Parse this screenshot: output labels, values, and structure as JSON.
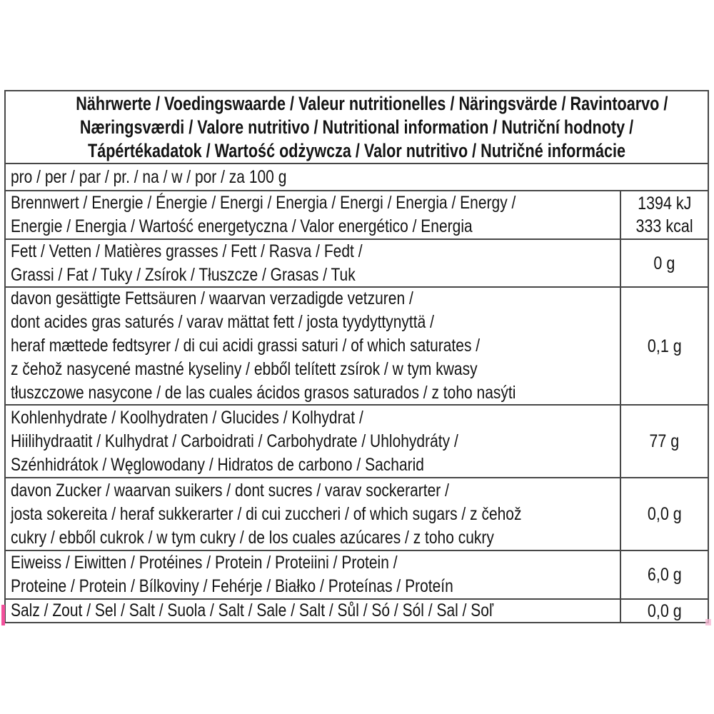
{
  "title": "Multilingual nutrition information label",
  "colors": {
    "background": "#ffffff",
    "border": "#474747",
    "text": "#141414",
    "artifact_pink": "#f2509c",
    "artifact_pink_faint": "#f6b9d3"
  },
  "table": {
    "header": {
      "lines": [
        "Nährwerte / Voedingswaarde / Valeur nutritionelles / Näringsvärde / Ravintoarvo /",
        "Næringsværdi / Valore nutritivo / Nutritional information / Nutriční hodnoty /",
        "Tápértékadatok / Wartość odżywcza / Valor nutritivo / Nutričné informácie"
      ]
    },
    "serving": {
      "text": "pro / per / par / pr. / na / w / por / za 100 g"
    },
    "rows": [
      {
        "id": "energy",
        "lines": [
          "Brennwert / Energie / Énergie / Energi / Energia / Energi / Energia / Energy /",
          "Energie / Energia / Wartość energetyczna / Valor energético / Energia"
        ],
        "values": [
          "1394 kJ",
          "333 kcal"
        ]
      },
      {
        "id": "fat",
        "lines": [
          "Fett / Vetten / Matières grasses / Fett / Rasva / Fedt /",
          "Grassi / Fat / Tuky / Zsírok / Tłuszcze / Grasas / Tuk"
        ],
        "values": [
          "0 g"
        ]
      },
      {
        "id": "saturates",
        "lines": [
          "davon gesättigte Fettsäuren / waarvan verzadigde vetzuren /",
          "dont acides gras saturés / varav mättat fett / josta tyydyttynyttä /",
          "heraf mættede fedtsyrer / di cui acidi grassi saturi / of which saturates /",
          "z čehož nasycené mastné kyseliny / ebből telített zsírok / w tym kwasy",
          "tłuszczowe nasycone / de las cuales ácidos grasos saturados / z toho nasýti"
        ],
        "values": [
          "0,1 g"
        ]
      },
      {
        "id": "carbohydrate",
        "lines": [
          "Kohlenhydrate / Koolhydraten / Glucides / Kolhydrat /",
          "Hiilihydraatit / Kulhydrat / Carboidrati / Carbohydrate / Uhlohydráty /",
          "Szénhidrátok / Węglowodany / Hidratos de carbono / Sacharid"
        ],
        "values": [
          "77 g"
        ]
      },
      {
        "id": "sugars",
        "lines": [
          "davon Zucker / waarvan suikers / dont sucres / varav sockerarter /",
          "josta sokereita / heraf sukkerarter / di cui zuccheri / of which sugars / z čehož",
          "cukry / ebből cukrok / w tym cukry / de los cuales azúcares / z toho cukry"
        ],
        "values": [
          "0,0 g"
        ]
      },
      {
        "id": "protein",
        "lines": [
          "Eiweiss / Eiwitten / Protéines / Protein / Proteiini / Protein /",
          "Proteine / Protein / Bílkoviny / Fehérje / Białko / Proteínas / Proteín"
        ],
        "values": [
          "6,0 g"
        ]
      },
      {
        "id": "salt",
        "lines": [
          "Salz / Zout / Sel / Salt / Suola / Salt / Sale / Salt / Sůl / Só / Sól / Sal / Soľ"
        ],
        "values": [
          "0,0 g"
        ]
      }
    ]
  }
}
